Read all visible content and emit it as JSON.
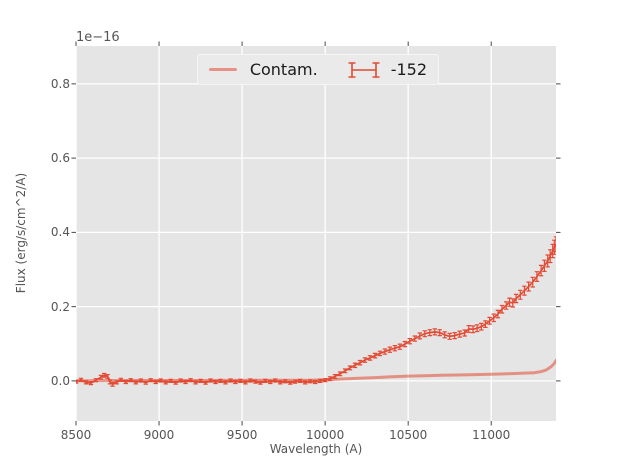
{
  "figure": {
    "background_color": "#ffffff",
    "axes_background_color": "#e5e5e5",
    "grid_color": "#ffffff",
    "tick_color": "#4a4a4a",
    "text_color": "#555555"
  },
  "chart_data": {
    "type": "line",
    "title": "",
    "xlabel": "Wavelength (A)",
    "ylabel": "Flux (erg/s/cm^2/A)",
    "offset_text": "1e−16",
    "xlim": [
      8500,
      11390
    ],
    "ylim": [
      -0.108,
      0.902
    ],
    "grid": true,
    "x_ticks": [
      {
        "value": 8500,
        "label": "8500"
      },
      {
        "value": 9000,
        "label": "9000"
      },
      {
        "value": 9500,
        "label": "9500"
      },
      {
        "value": 10000,
        "label": "10000"
      },
      {
        "value": 10500,
        "label": "10500"
      },
      {
        "value": 11000,
        "label": "11000"
      }
    ],
    "y_ticks": [
      {
        "value": 0.0,
        "label": "0.0"
      },
      {
        "value": 0.2,
        "label": "0.2"
      },
      {
        "value": 0.4,
        "label": "0.4"
      },
      {
        "value": 0.6,
        "label": "0.6"
      },
      {
        "value": 0.8,
        "label": "0.8"
      }
    ],
    "legend": {
      "position": "upper center",
      "entries": [
        {
          "label": "Contam.",
          "marker": "line"
        },
        {
          "label": "-152",
          "marker": "errorbar"
        }
      ]
    },
    "series": [
      {
        "name": "Contam.",
        "type": "line",
        "color": "#E24A33",
        "opacity": 0.55,
        "line_width": 3,
        "points": [
          [
            8500,
            0.0
          ],
          [
            8700,
            0.001
          ],
          [
            9000,
            0.001
          ],
          [
            9300,
            0.001
          ],
          [
            9600,
            0.002
          ],
          [
            9900,
            0.002
          ],
          [
            10000,
            0.003
          ],
          [
            10100,
            0.005
          ],
          [
            10200,
            0.007
          ],
          [
            10300,
            0.009
          ],
          [
            10400,
            0.011
          ],
          [
            10500,
            0.013
          ],
          [
            10600,
            0.014
          ],
          [
            10700,
            0.015
          ],
          [
            10800,
            0.016
          ],
          [
            10900,
            0.017
          ],
          [
            11000,
            0.018
          ],
          [
            11100,
            0.019
          ],
          [
            11200,
            0.021
          ],
          [
            11260,
            0.022
          ],
          [
            11300,
            0.025
          ],
          [
            11330,
            0.029
          ],
          [
            11360,
            0.038
          ],
          [
            11380,
            0.047
          ],
          [
            11390,
            0.055
          ]
        ]
      },
      {
        "name": "-152",
        "type": "errorbar",
        "color": "#E24A33",
        "opacity": 1.0,
        "line_width": 1.7,
        "points": [
          [
            8500,
            -0.002,
            0.004
          ],
          [
            8530,
            0.003,
            0.004
          ],
          [
            8560,
            -0.004,
            0.004
          ],
          [
            8590,
            -0.006,
            0.004
          ],
          [
            8620,
            0.002,
            0.004
          ],
          [
            8650,
            0.01,
            0.005
          ],
          [
            8670,
            0.015,
            0.005
          ],
          [
            8690,
            0.012,
            0.005
          ],
          [
            8705,
            -0.003,
            0.005
          ],
          [
            8720,
            -0.009,
            0.005
          ],
          [
            8745,
            -0.004,
            0.004
          ],
          [
            8770,
            0.003,
            0.004
          ],
          [
            8800,
            -0.003,
            0.004
          ],
          [
            8830,
            0.002,
            0.004
          ],
          [
            8860,
            -0.004,
            0.004
          ],
          [
            8890,
            0.001,
            0.004
          ],
          [
            8920,
            -0.005,
            0.004
          ],
          [
            8950,
            0.002,
            0.004
          ],
          [
            8980,
            -0.003,
            0.004
          ],
          [
            9010,
            0.001,
            0.004
          ],
          [
            9040,
            -0.004,
            0.004
          ],
          [
            9070,
            0.0,
            0.004
          ],
          [
            9100,
            -0.005,
            0.004
          ],
          [
            9130,
            0.001,
            0.004
          ],
          [
            9160,
            -0.003,
            0.004
          ],
          [
            9190,
            0.002,
            0.004
          ],
          [
            9220,
            -0.004,
            0.004
          ],
          [
            9250,
            0.0,
            0.004
          ],
          [
            9280,
            -0.005,
            0.004
          ],
          [
            9310,
            0.001,
            0.004
          ],
          [
            9340,
            -0.003,
            0.004
          ],
          [
            9370,
            0.0,
            0.004
          ],
          [
            9400,
            -0.004,
            0.004
          ],
          [
            9430,
            0.001,
            0.004
          ],
          [
            9460,
            -0.003,
            0.004
          ],
          [
            9490,
            0.0,
            0.004
          ],
          [
            9520,
            -0.004,
            0.004
          ],
          [
            9550,
            0.001,
            0.004
          ],
          [
            9580,
            -0.002,
            0.004
          ],
          [
            9610,
            -0.005,
            0.004
          ],
          [
            9640,
            0.0,
            0.004
          ],
          [
            9670,
            -0.003,
            0.004
          ],
          [
            9700,
            0.001,
            0.004
          ],
          [
            9730,
            -0.004,
            0.004
          ],
          [
            9760,
            -0.001,
            0.004
          ],
          [
            9790,
            -0.005,
            0.004
          ],
          [
            9820,
            -0.002,
            0.004
          ],
          [
            9850,
            0.0,
            0.004
          ],
          [
            9880,
            -0.004,
            0.004
          ],
          [
            9910,
            -0.001,
            0.004
          ],
          [
            9940,
            -0.003,
            0.004
          ],
          [
            9970,
            0.0,
            0.004
          ],
          [
            10000,
            0.002,
            0.004
          ],
          [
            10030,
            0.006,
            0.005
          ],
          [
            10060,
            0.012,
            0.005
          ],
          [
            10090,
            0.019,
            0.005
          ],
          [
            10120,
            0.027,
            0.005
          ],
          [
            10150,
            0.035,
            0.005
          ],
          [
            10180,
            0.042,
            0.006
          ],
          [
            10210,
            0.049,
            0.006
          ],
          [
            10240,
            0.056,
            0.006
          ],
          [
            10270,
            0.062,
            0.006
          ],
          [
            10300,
            0.068,
            0.006
          ],
          [
            10330,
            0.074,
            0.006
          ],
          [
            10360,
            0.079,
            0.007
          ],
          [
            10390,
            0.084,
            0.007
          ],
          [
            10420,
            0.088,
            0.007
          ],
          [
            10450,
            0.092,
            0.007
          ],
          [
            10480,
            0.099,
            0.007
          ],
          [
            10510,
            0.107,
            0.007
          ],
          [
            10540,
            0.114,
            0.007
          ],
          [
            10570,
            0.121,
            0.008
          ],
          [
            10600,
            0.127,
            0.008
          ],
          [
            10630,
            0.13,
            0.008
          ],
          [
            10660,
            0.132,
            0.008
          ],
          [
            10690,
            0.13,
            0.008
          ],
          [
            10720,
            0.124,
            0.008
          ],
          [
            10750,
            0.12,
            0.008
          ],
          [
            10780,
            0.122,
            0.008
          ],
          [
            10810,
            0.126,
            0.008
          ],
          [
            10840,
            0.129,
            0.008
          ],
          [
            10865,
            0.14,
            0.009
          ],
          [
            10890,
            0.139,
            0.009
          ],
          [
            10915,
            0.142,
            0.009
          ],
          [
            10940,
            0.146,
            0.009
          ],
          [
            10965,
            0.153,
            0.009
          ],
          [
            10990,
            0.162,
            0.009
          ],
          [
            11015,
            0.17,
            0.01
          ],
          [
            11040,
            0.18,
            0.01
          ],
          [
            11065,
            0.193,
            0.01
          ],
          [
            11090,
            0.203,
            0.01
          ],
          [
            11110,
            0.212,
            0.011
          ],
          [
            11130,
            0.21,
            0.011
          ],
          [
            11150,
            0.222,
            0.011
          ],
          [
            11175,
            0.232,
            0.012
          ],
          [
            11200,
            0.243,
            0.012
          ],
          [
            11225,
            0.254,
            0.012
          ],
          [
            11250,
            0.266,
            0.013
          ],
          [
            11275,
            0.281,
            0.013
          ],
          [
            11300,
            0.297,
            0.014
          ],
          [
            11320,
            0.31,
            0.015
          ],
          [
            11340,
            0.323,
            0.016
          ],
          [
            11355,
            0.336,
            0.017
          ],
          [
            11370,
            0.35,
            0.018
          ],
          [
            11380,
            0.36,
            0.019
          ],
          [
            11390,
            0.368,
            0.02
          ]
        ]
      }
    ]
  }
}
